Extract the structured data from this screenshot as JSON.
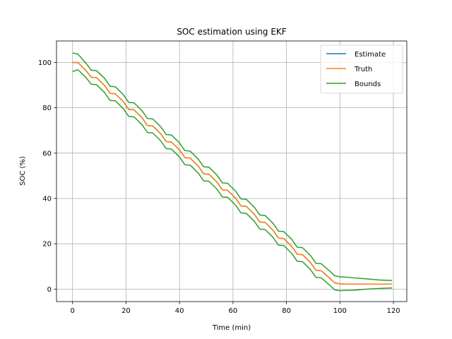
{
  "chart_data": {
    "type": "line",
    "title": "SOC estimation using EKF",
    "xlabel": "Time (min)",
    "ylabel": "SOC (%)",
    "xlim": [
      -6,
      125
    ],
    "ylim": [
      -5.5,
      109.5
    ],
    "xticks": [
      0,
      20,
      40,
      60,
      80,
      100,
      120
    ],
    "yticks": [
      0,
      20,
      40,
      60,
      80,
      100
    ],
    "grid": true,
    "legend_position": "top-right",
    "series": [
      {
        "name": "Estimate",
        "color": "#1f77b4",
        "x": [
          0,
          2,
          5,
          7,
          9,
          12,
          14,
          16,
          19,
          21,
          23,
          26,
          28,
          30,
          33,
          35,
          37,
          40,
          42,
          44,
          47,
          49,
          51,
          54,
          56,
          58,
          61,
          63,
          65,
          68,
          70,
          72,
          75,
          77,
          79,
          82,
          84,
          86,
          89,
          91,
          93,
          96,
          98,
          100,
          102,
          105,
          110,
          115,
          119.5
        ],
        "y": [
          100,
          100,
          96.5,
          93.5,
          93.3,
          89.8,
          86.4,
          86.2,
          82.7,
          79.3,
          79.1,
          75.6,
          72.2,
          72.0,
          68.5,
          65.1,
          64.9,
          61.4,
          58.0,
          57.8,
          54.3,
          50.9,
          50.7,
          47.2,
          43.8,
          43.6,
          40.1,
          36.7,
          36.5,
          33.0,
          29.6,
          29.4,
          25.9,
          22.5,
          22.3,
          18.8,
          15.4,
          15.2,
          11.7,
          8.3,
          8.1,
          5.0,
          2.8,
          2.3,
          2.2,
          2.2,
          2.2,
          2.2,
          2.2
        ]
      },
      {
        "name": "Truth",
        "color": "#ff7f0e",
        "x": [
          0,
          2,
          5,
          7,
          9,
          12,
          14,
          16,
          19,
          21,
          23,
          26,
          28,
          30,
          33,
          35,
          37,
          40,
          42,
          44,
          47,
          49,
          51,
          54,
          56,
          58,
          61,
          63,
          65,
          68,
          70,
          72,
          75,
          77,
          79,
          82,
          84,
          86,
          89,
          91,
          93,
          96,
          98,
          100,
          102,
          105,
          110,
          115,
          119.5
        ],
        "y": [
          100,
          100,
          96.5,
          93.5,
          93.3,
          89.8,
          86.4,
          86.2,
          82.7,
          79.3,
          79.1,
          75.6,
          72.2,
          72.0,
          68.5,
          65.1,
          64.9,
          61.4,
          58.0,
          57.8,
          54.3,
          50.9,
          50.7,
          47.2,
          43.8,
          43.6,
          40.1,
          36.7,
          36.5,
          33.0,
          29.6,
          29.4,
          25.9,
          22.5,
          22.3,
          18.8,
          15.4,
          15.2,
          11.7,
          8.3,
          8.1,
          5.0,
          2.8,
          2.3,
          2.2,
          2.2,
          2.2,
          2.2,
          2.2
        ]
      },
      {
        "name": "Bounds",
        "color": "#2ca02c",
        "x": [
          0,
          2,
          5,
          7,
          9,
          12,
          14,
          16,
          19,
          21,
          23,
          26,
          28,
          30,
          33,
          35,
          37,
          40,
          42,
          44,
          47,
          49,
          51,
          54,
          56,
          58,
          61,
          63,
          65,
          68,
          70,
          72,
          75,
          77,
          79,
          82,
          84,
          86,
          89,
          91,
          93,
          96,
          98,
          100,
          102,
          105,
          110,
          115,
          119.5
        ],
        "y": [
          104.2,
          103.7,
          99.7,
          96.6,
          96.4,
          93.0,
          89.5,
          89.3,
          85.8,
          82.4,
          82.2,
          78.7,
          75.3,
          75.1,
          71.6,
          68.2,
          68.0,
          64.5,
          61.1,
          60.9,
          57.4,
          54.0,
          53.8,
          50.3,
          46.9,
          46.7,
          43.2,
          39.8,
          39.6,
          36.1,
          32.7,
          32.5,
          29.0,
          25.6,
          25.4,
          21.9,
          18.5,
          18.3,
          14.8,
          11.4,
          11.2,
          8.1,
          5.9,
          5.4,
          5.3,
          5.0,
          4.5,
          4.0,
          3.8
        ]
      },
      {
        "name": "",
        "color": "#2ca02c",
        "x": [
          0,
          2,
          5,
          7,
          9,
          12,
          14,
          16,
          19,
          21,
          23,
          26,
          28,
          30,
          33,
          35,
          37,
          40,
          42,
          44,
          47,
          49,
          51,
          54,
          56,
          58,
          61,
          63,
          65,
          68,
          70,
          72,
          75,
          77,
          79,
          82,
          84,
          86,
          89,
          91,
          93,
          96,
          98,
          100,
          102,
          105,
          110,
          115,
          119.5
        ],
        "y": [
          96.0,
          96.8,
          93.4,
          90.4,
          90.2,
          86.7,
          83.3,
          83.1,
          79.6,
          76.2,
          76.0,
          72.5,
          69.1,
          68.9,
          65.4,
          62.0,
          61.8,
          58.3,
          54.9,
          54.7,
          51.2,
          47.8,
          47.6,
          44.1,
          40.7,
          40.5,
          37.0,
          33.6,
          33.4,
          29.9,
          26.5,
          26.3,
          22.8,
          19.4,
          19.2,
          15.7,
          12.3,
          12.1,
          8.6,
          5.2,
          5.0,
          1.9,
          -0.3,
          -0.7,
          -0.6,
          -0.5,
          0.0,
          0.3,
          0.5
        ]
      }
    ]
  }
}
